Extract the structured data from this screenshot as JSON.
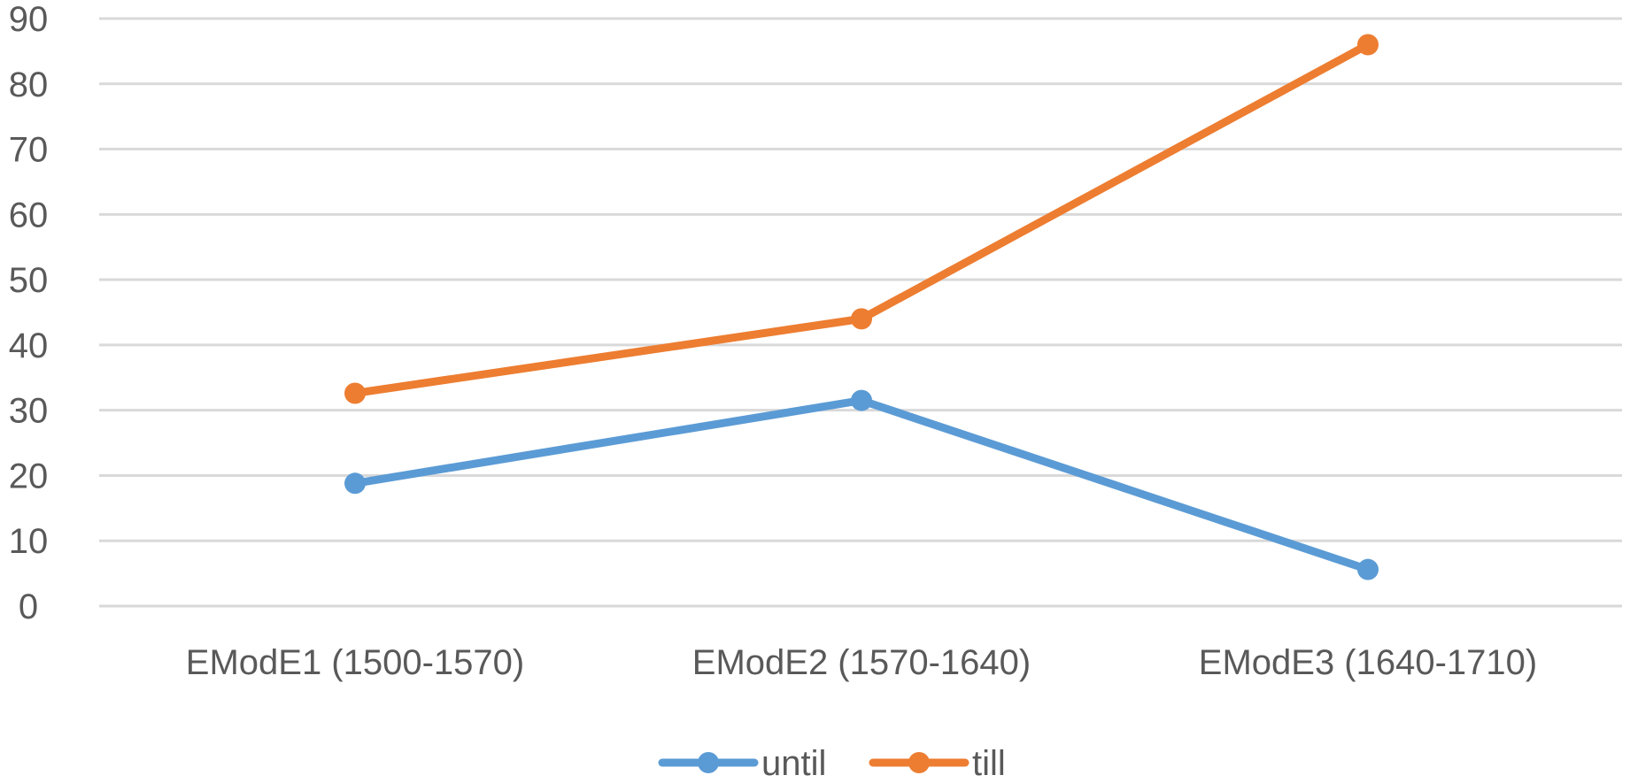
{
  "chart_data": {
    "type": "line",
    "title": "",
    "xlabel": "",
    "ylabel": "",
    "categories": [
      "EModE1 (1500-1570)",
      "EModE2 (1570-1640)",
      "EModE3 (1640-1710)"
    ],
    "series": [
      {
        "name": "until",
        "color": "#5B9BD5",
        "values": [
          18.8,
          31.5,
          5.6
        ]
      },
      {
        "name": "till",
        "color": "#ED7D31",
        "values": [
          32.6,
          44.0,
          86.0
        ]
      }
    ],
    "ylim": [
      0,
      90
    ],
    "yticks": [
      0,
      10,
      20,
      30,
      40,
      50,
      60,
      70,
      80,
      90
    ],
    "grid": true,
    "gridline_color": "#D9D9D9",
    "legend_position": "bottom",
    "markers": "circle"
  }
}
